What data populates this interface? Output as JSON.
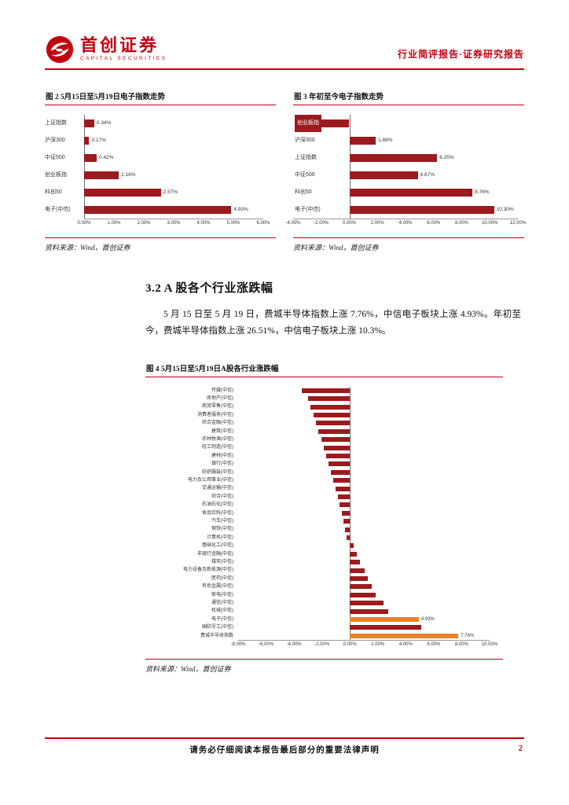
{
  "header": {
    "brand_cn": "首创证券",
    "brand_en": "CAPITAL SECURITIES",
    "doc_type": "行业简评报告·证券研究报告"
  },
  "figures": [
    {
      "title": "图 2  5月15日至5月19日电子指数走势",
      "source": "资料来源：Wind，首创证券"
    },
    {
      "title": "图 3  年初至今电子指数走势",
      "source": "资料来源：Wind，首创证券"
    },
    {
      "title": "图 4  5月15日至5月19日A股各行业涨跌幅",
      "source": "资料来源：Wind，首创证券"
    }
  ],
  "section": {
    "title": "3.2 A 股各个行业涨跌幅",
    "paragraph": "5 月 15 日至 5 月 19 日，费城半导体指数上涨 7.76%，中信电子板块上涨 4.93%。年初至今，费城半导体指数上涨 26.51%，中信电子板块上涨 10.3%。"
  },
  "footer": {
    "disclaimer": "请务必仔细阅读本报告最后部分的重要法律声明",
    "page": "2"
  },
  "colors": {
    "accent_red": "#c30010",
    "bar_dark": "#9b1b1e",
    "bar_orange": "#e8832c"
  },
  "chart_data": [
    {
      "type": "bar",
      "orientation": "horizontal",
      "title": "5月15日至5月19日电子指数走势",
      "categories": [
        "上证指数",
        "沪深300",
        "中证500",
        "创业板指",
        "科创50",
        "电子(中信)"
      ],
      "values": [
        0.34,
        0.17,
        0.42,
        1.16,
        2.57,
        4.93
      ],
      "value_labels": [
        "0.34%",
        "0.17%",
        "0.42%",
        "1.16%",
        "2.57%",
        "4.93%"
      ],
      "xlim": [
        0,
        6
      ],
      "ticks": [
        "0.00%",
        "1.00%",
        "2.00%",
        "3.00%",
        "4.00%",
        "5.00%",
        "6.00%"
      ],
      "grid": false,
      "legend": "none"
    },
    {
      "type": "bar",
      "orientation": "horizontal",
      "title": "年初至今电子指数走势",
      "categories": [
        "创业板指",
        "沪深300",
        "上证指数",
        "中证500",
        "科创50",
        "电子(中信)"
      ],
      "values": [
        -3.1,
        1.88,
        6.25,
        4.87,
        8.76,
        10.3
      ],
      "value_labels": [
        "",
        "1.88%",
        "6.25%",
        "4.87%",
        "8.76%",
        "10.30%"
      ],
      "label_on_bar": [
        0
      ],
      "xlim": [
        -4,
        12
      ],
      "ticks": [
        "-4.00%",
        "-2.00%",
        "0.00%",
        "2.00%",
        "4.00%",
        "6.00%",
        "8.00%",
        "10.00%",
        "12.00%"
      ],
      "grid": false,
      "legend": "none"
    },
    {
      "type": "bar",
      "orientation": "horizontal",
      "title": "5月15日至5月19日A股各行业涨跌幅",
      "categories": [
        "传媒(中信)",
        "房地产(中信)",
        "商贸零售(中信)",
        "消费者服务(中信)",
        "综合金融(中信)",
        "建筑(中信)",
        "农林牧渔(中信)",
        "轻工制造(中信)",
        "建材(中信)",
        "银行(中信)",
        "纺织服装(中信)",
        "电力及公用事业(中信)",
        "交通运输(中信)",
        "综合(中信)",
        "石油石化(中信)",
        "食品饮料(中信)",
        "汽车(中信)",
        "钢铁(中信)",
        "计算机(中信)",
        "基础化工(中信)",
        "非银行金融(中信)",
        "煤炭(中信)",
        "电力设备及新能源(中信)",
        "医药(中信)",
        "有色金属(中信)",
        "家电(中信)",
        "通信(中信)",
        "机械(中信)",
        "电子(中信)",
        "国防军工(中信)",
        "费城半导体指数"
      ],
      "values": [
        -3.46,
        -2.98,
        -2.8,
        -2.61,
        -2.42,
        -2.25,
        -2.05,
        -1.88,
        -1.7,
        -1.52,
        -1.35,
        -1.18,
        -1.02,
        -0.86,
        -0.72,
        -0.58,
        -0.45,
        -0.34,
        -0.22,
        0.28,
        0.47,
        0.7,
        1.05,
        1.3,
        1.58,
        1.85,
        2.4,
        2.72,
        4.93,
        5.1,
        7.76
      ],
      "value_labels": [
        "",
        "",
        "",
        "",
        "",
        "",
        "",
        "",
        "",
        "",
        "",
        "",
        "",
        "",
        "",
        "",
        "",
        "",
        "",
        "",
        "",
        "",
        "",
        "",
        "",
        "",
        "",
        "",
        "4.93%",
        "",
        "7.76%"
      ],
      "highlight": [
        28,
        30
      ],
      "xlim": [
        -8,
        10
      ],
      "ticks": [
        "-8.00%",
        "-6.00%",
        "-4.00%",
        "-2.00%",
        "0.00%",
        "2.00%",
        "4.00%",
        "6.00%",
        "8.00%",
        "10.00%"
      ],
      "grid": false,
      "legend": "none"
    }
  ]
}
